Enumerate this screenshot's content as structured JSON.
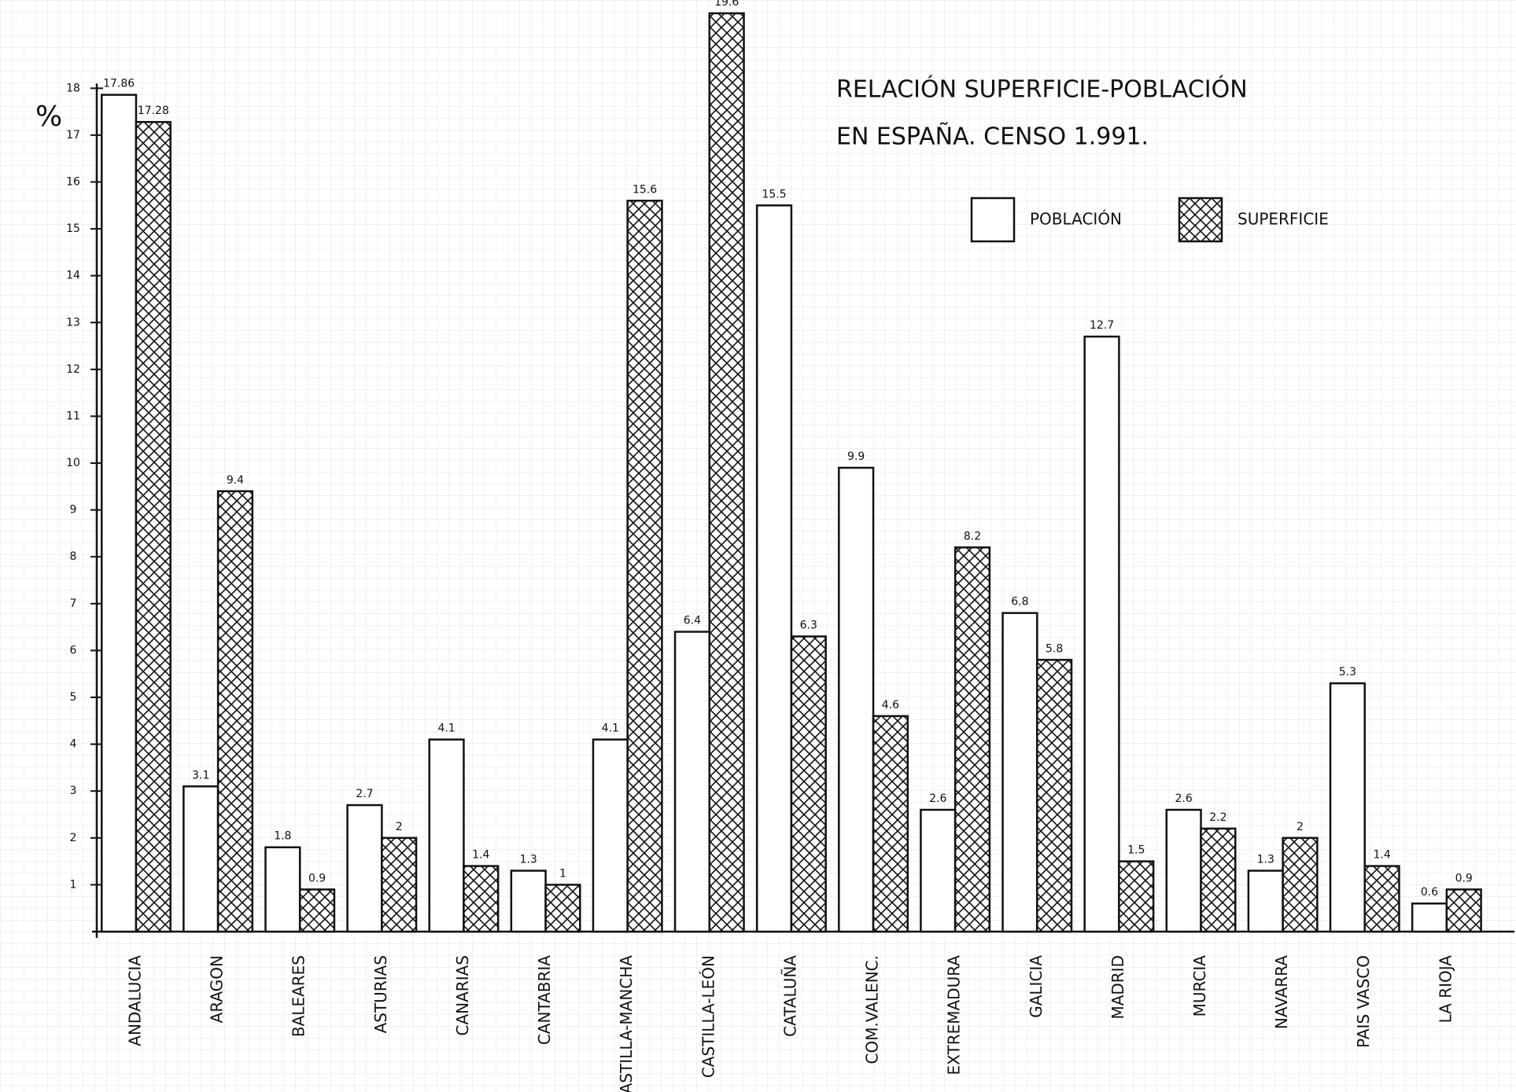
{
  "chart_data": {
    "type": "bar",
    "title": "RELACIÓN SUPERFICIE-POBLACIÓN",
    "subtitle": "EN ESPAÑA. CENSO 1.991.",
    "y_label": "%",
    "categories": [
      "ANDALUCIA",
      "ARAGON",
      "BALEARES",
      "ASTURIAS",
      "CANARIAS",
      "CANTABRIA",
      "CASTILLA-MANCHA",
      "CASTILLA-LEÓN",
      "CATALUÑA",
      "COM.VALENC.",
      "EXTREMADURA",
      "GALICIA",
      "MADRID",
      "MURCIA",
      "NAVARRA",
      "PAIS VASCO",
      "LA RIOJA"
    ],
    "series": [
      {
        "name": "POBLACIÓN",
        "color": "#ffffff",
        "values": [
          17.86,
          3.1,
          1.8,
          2.7,
          4.1,
          1.3,
          4.1,
          6.4,
          15.5,
          9.9,
          2.6,
          6.8,
          12.7,
          2.6,
          1.3,
          5.3,
          0.6
        ]
      },
      {
        "name": "SUPERFICIE",
        "color": "#ffffff",
        "hatch": "cross",
        "values": [
          17.28,
          9.4,
          0.9,
          2,
          1.4,
          1,
          15.6,
          19.6,
          6.3,
          4.6,
          8.2,
          5.8,
          1.5,
          2.2,
          2,
          1.4,
          0.9
        ]
      }
    ],
    "ylim": [
      0,
      19.8
    ],
    "yticks": [
      1,
      2,
      3,
      4,
      5,
      6,
      7,
      8,
      9,
      10,
      11,
      12,
      13,
      14,
      15,
      16,
      17,
      18
    ],
    "grid": true
  }
}
